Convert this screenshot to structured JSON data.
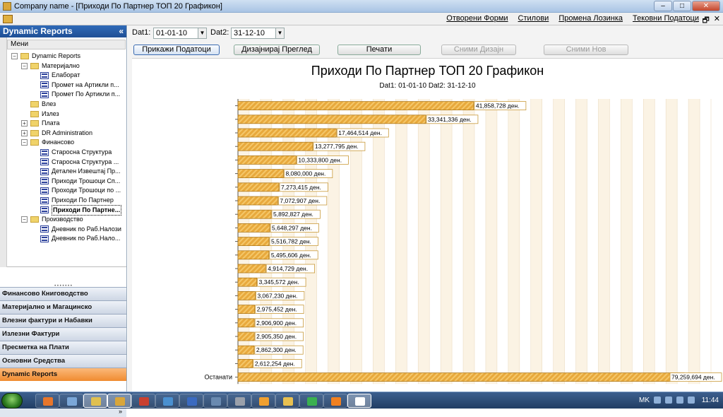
{
  "window": {
    "title": "Company name - [Приходи По Партнер ТОП 20 Графикон]"
  },
  "window_buttons": {
    "minimize": "–",
    "maximize": "□",
    "close": "✕"
  },
  "menubar": {
    "items": [
      "Отворени Форми",
      "Стилови",
      "Промена Лозинка",
      "Тековни Податоци"
    ],
    "mdi_controls": [
      "_",
      "🗗",
      "✕"
    ]
  },
  "sidebar": {
    "title": "Dynamic Reports",
    "collapse_glyph": "«",
    "tree_header": "Мени",
    "tree": [
      {
        "label": "Dynamic Reports",
        "type": "folder",
        "level": 0,
        "expander": "−"
      },
      {
        "label": "Материјално",
        "type": "folder",
        "level": 1,
        "expander": "−"
      },
      {
        "label": "Елаборат",
        "type": "report",
        "level": 2
      },
      {
        "label": "Промет на Артикли п...",
        "type": "report",
        "level": 2
      },
      {
        "label": "Промет По Артикли п...",
        "type": "report",
        "level": 2
      },
      {
        "label": "Влез",
        "type": "folder",
        "level": 1
      },
      {
        "label": "Излез",
        "type": "folder",
        "level": 1
      },
      {
        "label": "Плата",
        "type": "folder",
        "level": 1,
        "expander": "+"
      },
      {
        "label": "DR Administration",
        "type": "folder",
        "level": 1,
        "expander": "+"
      },
      {
        "label": "Финансово",
        "type": "folder",
        "level": 1,
        "expander": "−"
      },
      {
        "label": "Старосна Структура",
        "type": "report",
        "level": 2
      },
      {
        "label": "Старосна Структура ...",
        "type": "report",
        "level": 2
      },
      {
        "label": "Детален Извештај Пр...",
        "type": "report",
        "level": 2
      },
      {
        "label": "Приходи Трошоци Сп...",
        "type": "report",
        "level": 2
      },
      {
        "label": "Проходи Трошоци по ...",
        "type": "report",
        "level": 2
      },
      {
        "label": "Приходи По Партнер",
        "type": "report",
        "level": 2
      },
      {
        "label": "Приходи По Партне...",
        "type": "report",
        "level": 2,
        "selected": true
      },
      {
        "label": "Производство",
        "type": "folder",
        "level": 1,
        "expander": "−"
      },
      {
        "label": "Дневник по Раб.Налози",
        "type": "report",
        "level": 2
      },
      {
        "label": "Дневник по Раб.Нало...",
        "type": "report",
        "level": 2
      }
    ],
    "nav_buttons": [
      {
        "label": "Финансово Книговодство",
        "active": false
      },
      {
        "label": "Материјално и Магацинско",
        "active": false
      },
      {
        "label": "Влезни фактури и Набавки",
        "active": false
      },
      {
        "label": "Излезни Фактури",
        "active": false
      },
      {
        "label": "Пресметка на Плати",
        "active": false
      },
      {
        "label": "Основни Средства",
        "active": false
      },
      {
        "label": "Dynamic Reports",
        "active": true
      }
    ],
    "footer_glyph": "»"
  },
  "filters": {
    "dat1_label": "Dat1:",
    "dat1_value": "01-01-10",
    "dat2_label": "Dat2:",
    "dat2_value": "31-12-10",
    "combo_arrow": "▼"
  },
  "toolbar": {
    "show_data": "Прикажи Податоци",
    "design_view": "Дизајнирај Преглед",
    "print": "Печати",
    "save_design": "Сними Дизајн",
    "save_new": "Сними Нов"
  },
  "chart_data": {
    "type": "bar",
    "orientation": "horizontal",
    "title": "Приходи По Партнер ТОП 20 Графикон",
    "subtitle": "Dat1: 01-01-10 Dat2: 31-12-10",
    "categories": [
      "",
      "",
      "",
      "",
      "",
      "",
      "",
      "",
      "",
      "",
      "",
      "",
      "",
      "",
      "",
      "",
      "",
      "",
      "",
      "",
      "Останати"
    ],
    "values": [
      41858728,
      33341336,
      17464514,
      13277795,
      10333800,
      8080000,
      7273415,
      7072907,
      5892827,
      5648297,
      5516782,
      5495606,
      4914729,
      3345572,
      3067230,
      2975452,
      2906900,
      2905350,
      2862300,
      2612254,
      79259694
    ],
    "value_labels": [
      "41,858,728 ден.",
      "33,341,336 ден.",
      "17,464,514 ден.",
      "13,277,795 ден.",
      "10,333,800 ден.",
      "8,080,000 ден.",
      "7,273,415 ден.",
      "7,072,907 ден.",
      "5,892,827 ден.",
      "5,648,297 ден.",
      "5,516,782 ден.",
      "5,495,606 ден.",
      "4,914,729 ден.",
      "3,345,572 ден.",
      "3,067,230 ден.",
      "2,975,452 ден.",
      "2,906,900 ден.",
      "2,905,350 ден.",
      "2,862,300 ден.",
      "2,612,254 ден.",
      "79,259,694 ден."
    ],
    "xlim": [
      0,
      84000000
    ],
    "grid": true,
    "colors": {
      "bar": "#e8a93c",
      "bar_stripe": "#f4c76a",
      "band_a": "#fbf3e4",
      "band_b": "#ffffff",
      "label_border": "#c99a3a"
    }
  },
  "taskbar": {
    "apps": [
      {
        "name": "firefox-icon",
        "color": "#e8762b"
      },
      {
        "name": "app-icon",
        "color": "#7ba7d8"
      },
      {
        "name": "explorer-icon",
        "color": "#e0c050",
        "active": true
      },
      {
        "name": "app-icon",
        "color": "#d9a63a",
        "active": true
      },
      {
        "name": "app-icon",
        "color": "#c84030"
      },
      {
        "name": "network-icon",
        "color": "#4a90d0"
      },
      {
        "name": "word-icon",
        "color": "#3a6ac0"
      },
      {
        "name": "app-icon",
        "color": "#6a8ab0"
      },
      {
        "name": "calculator-icon",
        "color": "#9aa0aa"
      },
      {
        "name": "app-icon",
        "color": "#f0a030"
      },
      {
        "name": "folder-icon",
        "color": "#e8c050"
      },
      {
        "name": "app-icon",
        "color": "#3ab050"
      },
      {
        "name": "media-icon",
        "color": "#f08020"
      },
      {
        "name": "window-icon",
        "color": "#ffffff",
        "active": true
      }
    ],
    "language": "MK",
    "time": "11:44"
  }
}
